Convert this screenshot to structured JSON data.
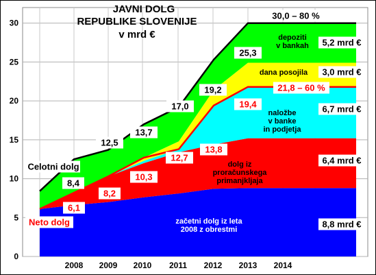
{
  "chart_data": {
    "type": "area",
    "title_lines": [
      "JAVNI DOLG",
      "REPUBLIKE SLOVENIJE",
      "v mrd €"
    ],
    "x": [
      "2008",
      "2009",
      "2010",
      "2011",
      "2012",
      "2013",
      "2014"
    ],
    "ylim": [
      0,
      32
    ],
    "yticks": [
      "0",
      "5",
      "10",
      "15",
      "20",
      "25",
      "30"
    ],
    "grid": true,
    "series": [
      {
        "name": "začetni dolg iz leta 2008 z obrestmi",
        "color": "#0000ff",
        "values": [
          6.1,
          6.6,
          7.0,
          7.6,
          8.1,
          8.7,
          8.8
        ]
      },
      {
        "name": "dolg iz proračunskega primanjkljaja",
        "color": "#ff0000",
        "values": [
          0.0,
          1.6,
          3.3,
          4.4,
          5.3,
          5.7,
          6.4
        ]
      },
      {
        "name": "naložbe v banke in podjetja",
        "color": "#00ffff",
        "values": [
          0.0,
          0.0,
          0.0,
          0.3,
          0.4,
          5.0,
          6.7
        ]
      },
      {
        "name": "dana posojila",
        "color": "#ffff00",
        "values": [
          0.0,
          0.0,
          0.0,
          0.4,
          1.0,
          2.0,
          3.0
        ]
      },
      {
        "name": "depoziti v bankah",
        "color": "#00ff00",
        "values": [
          2.3,
          4.3,
          3.4,
          4.3,
          4.4,
          3.9,
          5.2
        ]
      }
    ],
    "top_line": {
      "name": "Celotni dolg",
      "color": "#000000",
      "values": [
        8.4,
        12.5,
        13.7,
        17.0,
        19.2,
        25.3,
        30.0
      ]
    },
    "net_line": {
      "name": "Neto dolg",
      "color": "#ff0000",
      "values": [
        6.1,
        8.2,
        10.3,
        12.7,
        13.8,
        19.4,
        21.8
      ]
    },
    "total_labels": [
      "8,4",
      "12,5",
      "13,7",
      "17,0",
      "19,2",
      "25,3",
      "30,0 – 80 %"
    ],
    "net_labels": [
      "6,1",
      "8,2",
      "10,3",
      "12,7",
      "13,8",
      "19,4",
      "21,8 – 60 %"
    ],
    "area_labels": {
      "blue": [
        "začetni dolg iz leta",
        "2008 z obrestmi"
      ],
      "red": [
        "dolg iz",
        "proračunskega",
        "primanjkljaja"
      ],
      "cyan": [
        "naložbe",
        "v banke",
        "in podjetja"
      ],
      "yellow": [
        "dana posojila"
      ],
      "green": [
        "depoziti",
        "v bankah"
      ]
    },
    "right_labels": {
      "green": "5,2 mrd €",
      "yellow": "3,0 mrd €",
      "cyan": "6,7 mrd €",
      "red": "6,4 mrd €",
      "blue": "8,8 mrd €"
    },
    "left_labels": {
      "total": "Celotni dolg",
      "net": "Neto dolg"
    }
  }
}
